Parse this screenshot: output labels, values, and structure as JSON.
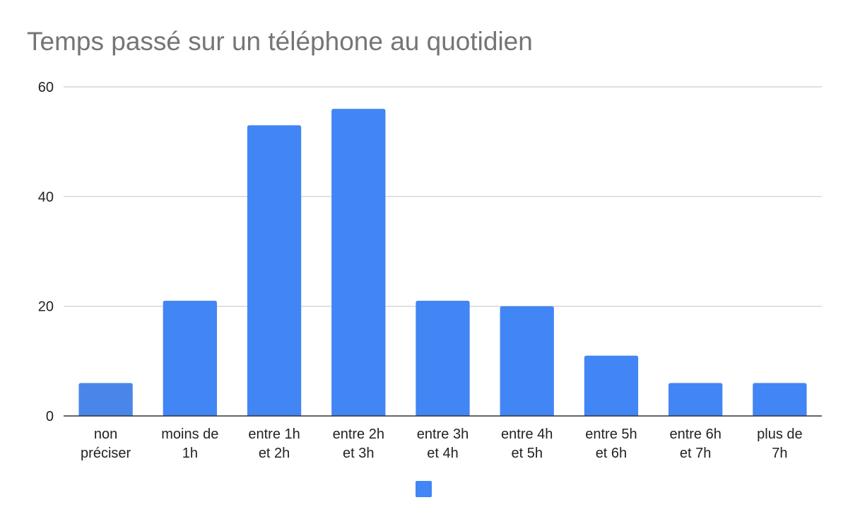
{
  "chart_data": {
    "type": "bar",
    "title": "Temps passé sur un téléphone au quotidien",
    "categories": [
      [
        "non",
        "préciser"
      ],
      [
        "moins de",
        "1h"
      ],
      [
        "entre 1h",
        "et 2h"
      ],
      [
        "entre 2h",
        "et 3h"
      ],
      [
        "entre 3h",
        "et 4h"
      ],
      [
        "entre 4h",
        "et 5h"
      ],
      [
        "entre 5h",
        "et 6h"
      ],
      [
        "entre 6h",
        "et 7h"
      ],
      [
        "plus de",
        "7h"
      ]
    ],
    "values": [
      6,
      21,
      53,
      56,
      21,
      20,
      11,
      6,
      6
    ],
    "ylim": [
      0,
      60
    ],
    "yticks": [
      0,
      20,
      40,
      60
    ],
    "xlabel": "",
    "ylabel": "",
    "grid": true,
    "legend_position": "bottom",
    "colors": {
      "bar": "#4285f4",
      "first_bar": "#4a86e8",
      "grid": "#cccccc",
      "axis": "#333333",
      "title": "#757575",
      "text": "#222222"
    }
  }
}
